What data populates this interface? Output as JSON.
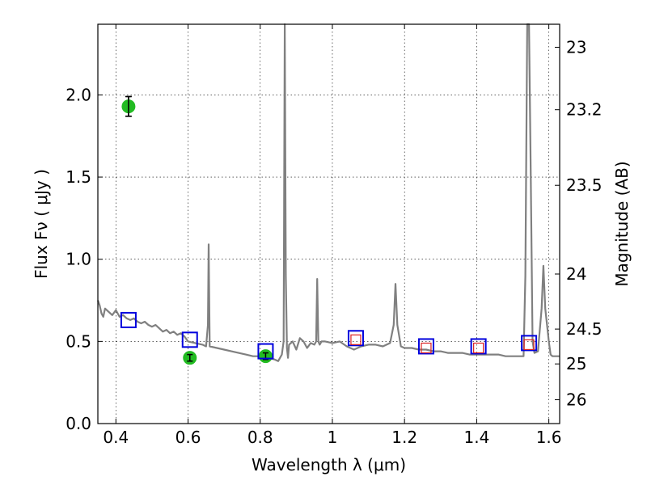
{
  "chart_data": {
    "type": "line",
    "xlabel": "Wavelength  λ (μm)",
    "ylabel": "Flux  Fν  ( μJy )",
    "y2label": "Magnitude (AB)",
    "xlim": [
      0.35,
      1.63
    ],
    "ylim": [
      0.0,
      2.43
    ],
    "grid": true,
    "x_ticks": [
      {
        "value": 0.4,
        "label": "0.4"
      },
      {
        "value": 0.6,
        "label": "0.6"
      },
      {
        "value": 0.8,
        "label": "0.8"
      },
      {
        "value": 1.0,
        "label": "1"
      },
      {
        "value": 1.2,
        "label": "1.2"
      },
      {
        "value": 1.4,
        "label": "1.4"
      },
      {
        "value": 1.6,
        "label": "1.6"
      }
    ],
    "y_ticks": [
      {
        "value": 0.0,
        "label": "0.0"
      },
      {
        "value": 0.5,
        "label": "0.5"
      },
      {
        "value": 1.0,
        "label": "1.0"
      },
      {
        "value": 1.5,
        "label": "1.5"
      },
      {
        "value": 2.0,
        "label": "2.0"
      }
    ],
    "y2_ticks": [
      {
        "flux": 2.29,
        "label": "23"
      },
      {
        "flux": 1.91,
        "label": "23.2"
      },
      {
        "flux": 1.45,
        "label": "23.5"
      },
      {
        "flux": 0.91,
        "label": "24"
      },
      {
        "flux": 0.575,
        "label": "24.5"
      },
      {
        "flux": 0.363,
        "label": "25"
      },
      {
        "flux": 0.145,
        "label": "26"
      }
    ],
    "series": [
      {
        "kind": "spectrum",
        "color": "#808080",
        "x": [
          0.35,
          0.355,
          0.36,
          0.365,
          0.37,
          0.38,
          0.39,
          0.4,
          0.41,
          0.42,
          0.43,
          0.44,
          0.45,
          0.46,
          0.47,
          0.48,
          0.49,
          0.5,
          0.51,
          0.52,
          0.53,
          0.54,
          0.55,
          0.56,
          0.57,
          0.58,
          0.59,
          0.6,
          0.62,
          0.64,
          0.65,
          0.655,
          0.657,
          0.66,
          0.68,
          0.7,
          0.72,
          0.74,
          0.76,
          0.78,
          0.8,
          0.82,
          0.84,
          0.85,
          0.86,
          0.865,
          0.868,
          0.871,
          0.874,
          0.877,
          0.88,
          0.89,
          0.9,
          0.91,
          0.92,
          0.93,
          0.94,
          0.95,
          0.955,
          0.958,
          0.961,
          0.965,
          0.97,
          0.98,
          1.0,
          1.02,
          1.04,
          1.06,
          1.08,
          1.1,
          1.12,
          1.14,
          1.16,
          1.17,
          1.175,
          1.18,
          1.19,
          1.2,
          1.22,
          1.24,
          1.26,
          1.28,
          1.3,
          1.32,
          1.34,
          1.36,
          1.38,
          1.4,
          1.42,
          1.44,
          1.46,
          1.48,
          1.5,
          1.52,
          1.53,
          1.535,
          1.54,
          1.545,
          1.55,
          1.555,
          1.56,
          1.57,
          1.58,
          1.585,
          1.59,
          1.6,
          1.605,
          1.61,
          1.63
        ],
        "y": [
          0.75,
          0.72,
          0.67,
          0.65,
          0.7,
          0.68,
          0.66,
          0.69,
          0.65,
          0.66,
          0.64,
          0.63,
          0.64,
          0.62,
          0.61,
          0.62,
          0.6,
          0.59,
          0.6,
          0.58,
          0.56,
          0.57,
          0.55,
          0.56,
          0.54,
          0.55,
          0.53,
          0.5,
          0.49,
          0.48,
          0.47,
          0.6,
          1.09,
          0.47,
          0.46,
          0.45,
          0.44,
          0.43,
          0.42,
          0.41,
          0.41,
          0.4,
          0.39,
          0.38,
          0.42,
          0.5,
          2.43,
          0.9,
          0.46,
          0.4,
          0.48,
          0.5,
          0.45,
          0.52,
          0.5,
          0.46,
          0.49,
          0.48,
          0.5,
          0.88,
          0.5,
          0.48,
          0.5,
          0.5,
          0.49,
          0.5,
          0.47,
          0.45,
          0.47,
          0.48,
          0.48,
          0.47,
          0.49,
          0.6,
          0.85,
          0.6,
          0.47,
          0.46,
          0.46,
          0.45,
          0.45,
          0.44,
          0.44,
          0.43,
          0.43,
          0.43,
          0.42,
          0.42,
          0.42,
          0.42,
          0.42,
          0.41,
          0.41,
          0.41,
          0.41,
          0.9,
          2.43,
          2.43,
          1.5,
          0.5,
          0.43,
          0.44,
          0.7,
          0.96,
          0.7,
          0.5,
          0.42,
          0.41,
          0.41
        ]
      },
      {
        "kind": "observed",
        "color": "#22bb22",
        "x": [
          0.435,
          0.605,
          0.815
        ],
        "y": [
          1.93,
          0.4,
          0.41
        ],
        "err": [
          0.06,
          0.02,
          0.02
        ]
      },
      {
        "kind": "model-blue-squares",
        "color": "#0000dd",
        "x": [
          0.435,
          0.605,
          0.815,
          1.065,
          1.26,
          1.405,
          1.545
        ],
        "y": [
          0.63,
          0.51,
          0.44,
          0.52,
          0.47,
          0.47,
          0.49
        ]
      },
      {
        "kind": "model-red-squares",
        "color": "#dd2222",
        "x": [
          1.065,
          1.26,
          1.405,
          1.545
        ],
        "y": [
          0.51,
          0.46,
          0.46,
          0.48
        ]
      }
    ]
  }
}
